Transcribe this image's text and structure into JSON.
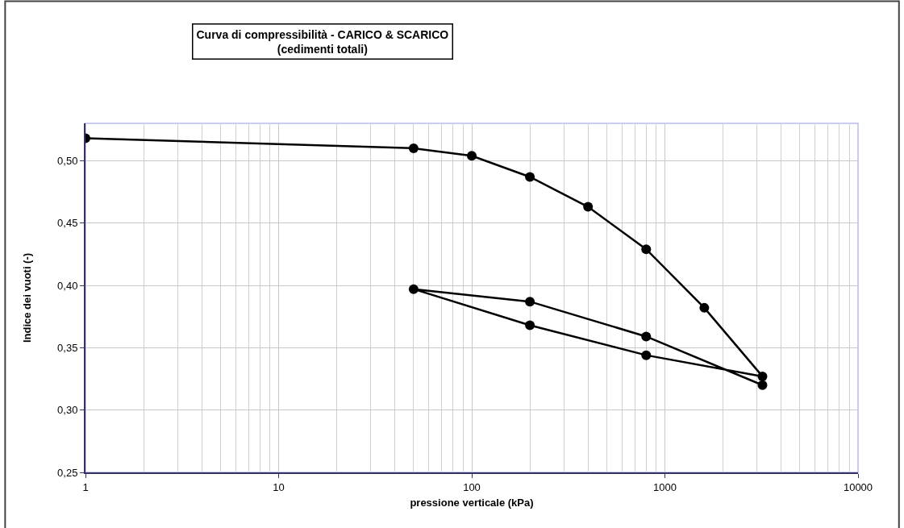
{
  "chart_data": {
    "type": "line",
    "title": "Curva di compressibilità - CARICO & SCARICO\n(cedimenti totali)",
    "xlabel": "pressione verticale (kPa)",
    "ylabel": "Indice dei vuoti (-)",
    "x": [
      1,
      50,
      100,
      200,
      400,
      800,
      1600,
      3200,
      800,
      200,
      50,
      200,
      800,
      3200
    ],
    "series": [
      {
        "color": "#000000",
        "values": [
          0.518,
          0.51,
          0.504,
          0.487,
          0.463,
          0.429,
          0.382,
          0.327,
          0.344,
          0.368,
          0.397,
          0.387,
          0.359,
          0.32
        ]
      }
    ],
    "log": "x",
    "xlim": [
      1,
      10000
    ],
    "xticks": [
      1,
      10,
      100,
      1000,
      10000
    ],
    "ylim": [
      0.25,
      0.53
    ],
    "yticks": [
      {
        "value": 0.25,
        "label": "0,25"
      },
      {
        "value": 0.3,
        "label": "0,30"
      },
      {
        "value": 0.35,
        "label": "0,35"
      },
      {
        "value": 0.4,
        "label": "0,40"
      },
      {
        "value": 0.45,
        "label": "0,45"
      },
      {
        "value": 0.5,
        "label": "0,50"
      }
    ],
    "grid": true,
    "marker": "circle",
    "line_style": "solid"
  }
}
